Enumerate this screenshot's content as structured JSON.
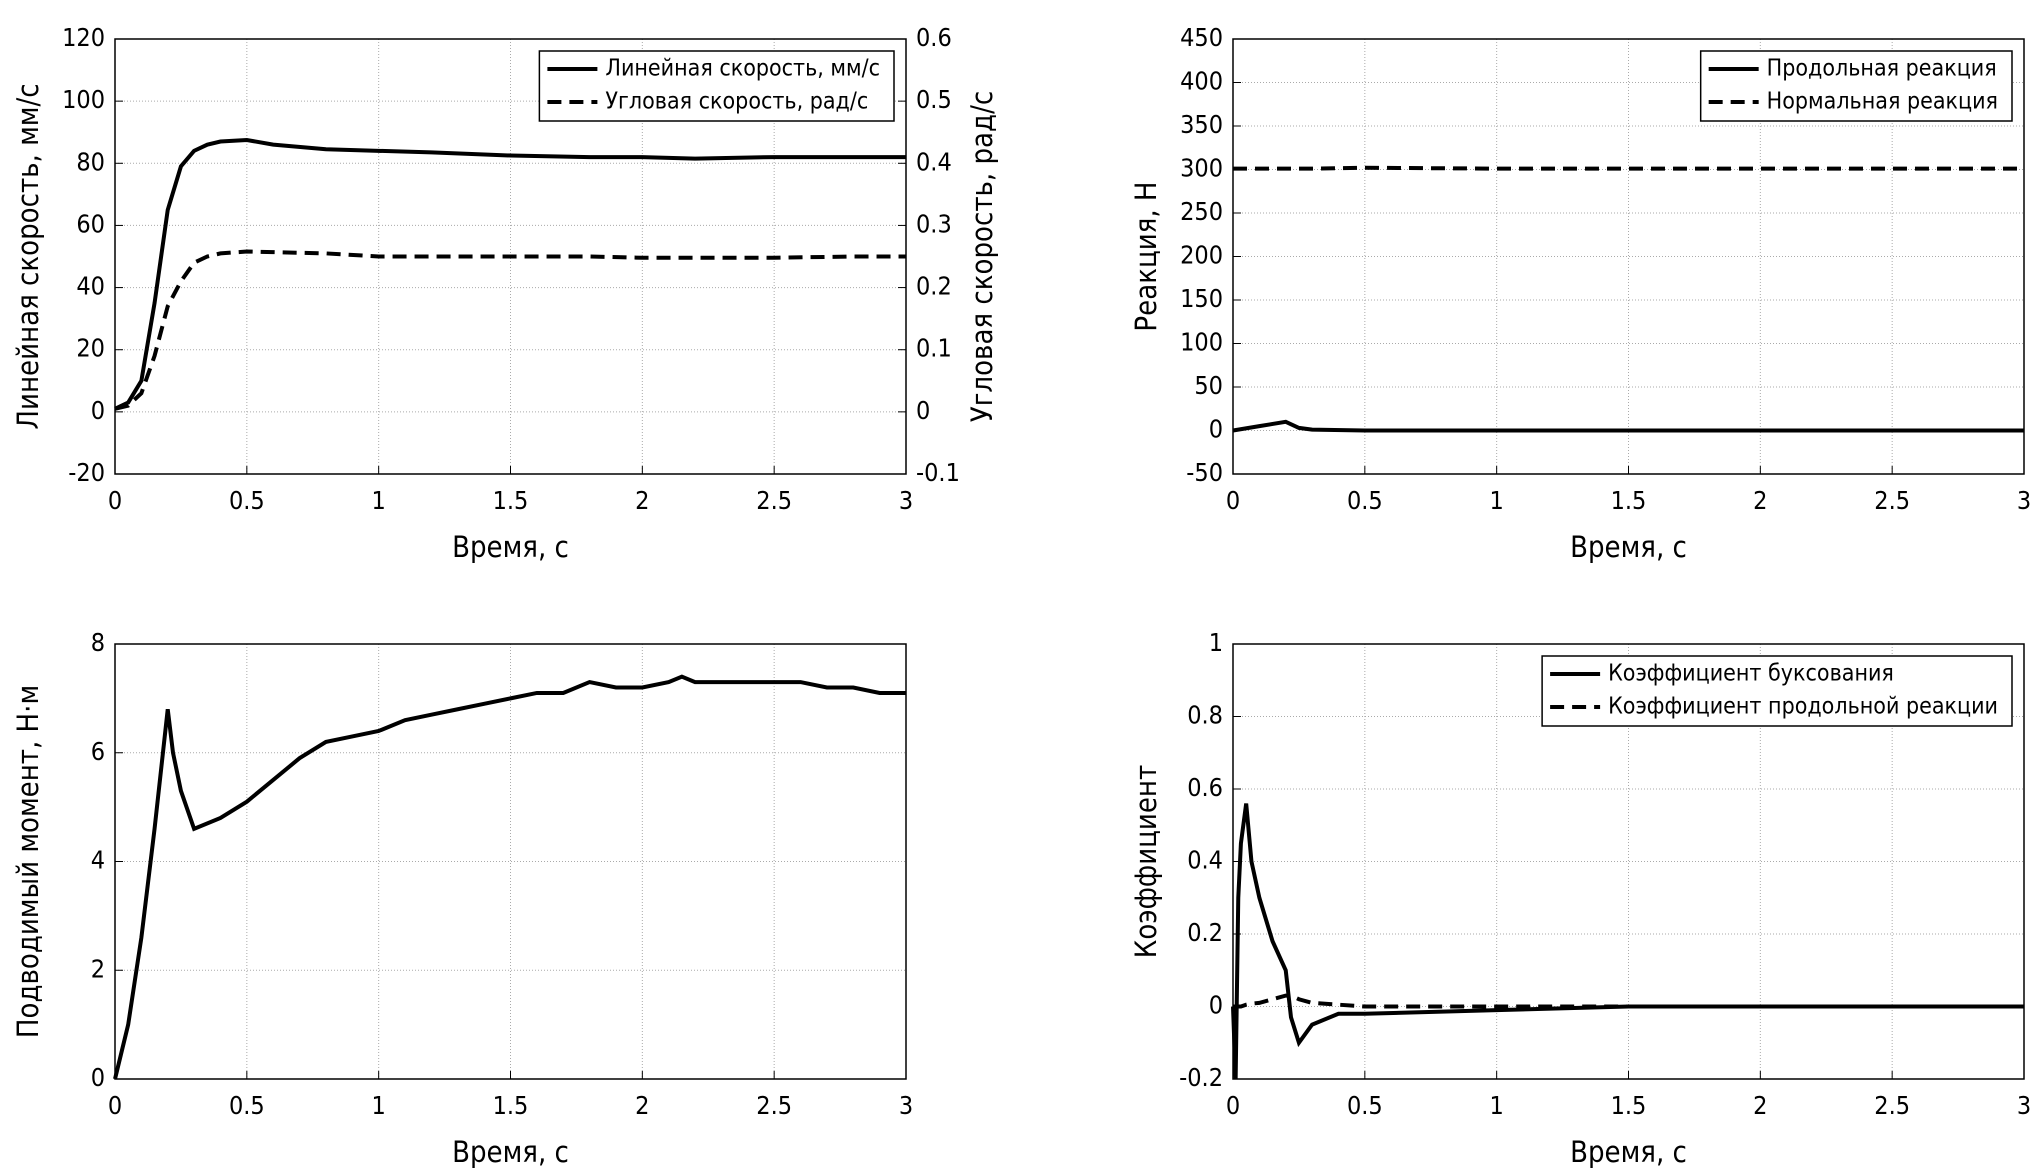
{
  "chart_data": [
    {
      "type": "line",
      "xlabel": "Время, с",
      "ylabel": "Линейная скорость, мм/с",
      "y2label": "Угловая скорость, рад/с",
      "x": [
        0,
        0.05,
        0.1,
        0.15,
        0.2,
        0.25,
        0.3,
        0.35,
        0.4,
        0.5,
        0.6,
        0.8,
        1,
        1.2,
        1.5,
        1.8,
        2,
        2.2,
        2.5,
        2.8,
        3
      ],
      "series": [
        {
          "name": "Линейная скорость, мм/с",
          "color": "#000000",
          "line_style": "solid",
          "values": [
            1,
            3,
            10,
            35,
            65,
            79,
            84,
            86,
            87,
            87.5,
            86,
            84.5,
            84,
            83.5,
            82.5,
            82,
            82,
            81.5,
            82,
            82,
            82
          ]
        },
        {
          "name": "Угловая скорость, рад/с",
          "color": "#000000",
          "line_style": "dashed",
          "axis": "y2",
          "values": [
            0.005,
            0.01,
            0.03,
            0.09,
            0.17,
            0.21,
            0.24,
            0.25,
            0.255,
            0.258,
            0.257,
            0.255,
            0.25,
            0.25,
            0.25,
            0.25,
            0.248,
            0.248,
            0.248,
            0.25,
            0.25
          ]
        }
      ],
      "xlim": [
        0,
        3
      ],
      "xticks": [
        0,
        0.5,
        1,
        1.5,
        2,
        2.5,
        3
      ],
      "ylim": [
        -20,
        120
      ],
      "yticks": [
        -20,
        0,
        20,
        40,
        60,
        80,
        100,
        120
      ],
      "y2lim": [
        -0.1,
        0.6
      ],
      "y2ticks": [
        -0.1,
        0,
        0.1,
        0.2,
        0.3,
        0.4,
        0.5,
        0.6
      ],
      "grid": true,
      "legend": "upper right"
    },
    {
      "type": "line",
      "xlabel": "Время, с",
      "ylabel": "Реакция, Н",
      "x": [
        0,
        0.1,
        0.2,
        0.25,
        0.3,
        0.5,
        1,
        1.5,
        2,
        2.5,
        3
      ],
      "series": [
        {
          "name": "Продольная реакция",
          "color": "#000000",
          "line_style": "solid",
          "values": [
            0,
            5,
            10,
            3,
            1,
            0,
            0,
            0,
            0,
            0,
            0
          ]
        },
        {
          "name": "Нормальная реакция",
          "color": "#000000",
          "line_style": "dashed",
          "values": [
            301,
            301,
            301,
            301,
            301,
            302,
            301,
            301,
            301,
            301,
            301
          ]
        }
      ],
      "xlim": [
        0,
        3
      ],
      "xticks": [
        0,
        0.5,
        1,
        1.5,
        2,
        2.5,
        3
      ],
      "ylim": [
        -50,
        450
      ],
      "yticks": [
        -50,
        0,
        50,
        100,
        150,
        200,
        250,
        300,
        350,
        400,
        450
      ],
      "grid": true,
      "legend": "upper right"
    },
    {
      "type": "line",
      "xlabel": "Время, с",
      "ylabel": "Подводимый момент, Н·м",
      "x": [
        0,
        0.05,
        0.1,
        0.15,
        0.2,
        0.22,
        0.25,
        0.3,
        0.4,
        0.5,
        0.6,
        0.7,
        0.8,
        0.9,
        1,
        1.1,
        1.2,
        1.3,
        1.4,
        1.5,
        1.6,
        1.7,
        1.8,
        1.9,
        2,
        2.1,
        2.15,
        2.2,
        2.3,
        2.4,
        2.5,
        2.6,
        2.7,
        2.8,
        2.9,
        3
      ],
      "series": [
        {
          "color": "#000000",
          "line_style": "solid",
          "values": [
            0,
            1,
            2.6,
            4.6,
            6.8,
            6,
            5.3,
            4.6,
            4.8,
            5.1,
            5.5,
            5.9,
            6.2,
            6.3,
            6.4,
            6.6,
            6.7,
            6.8,
            6.9,
            7,
            7.1,
            7.1,
            7.3,
            7.2,
            7.2,
            7.3,
            7.4,
            7.3,
            7.3,
            7.3,
            7.3,
            7.3,
            7.2,
            7.2,
            7.1,
            7.1
          ]
        }
      ],
      "xlim": [
        0,
        3
      ],
      "xticks": [
        0,
        0.5,
        1,
        1.5,
        2,
        2.5,
        3
      ],
      "ylim": [
        0,
        8
      ],
      "yticks": [
        0,
        2,
        4,
        6,
        8
      ],
      "grid": true
    },
    {
      "type": "line",
      "xlabel": "Время, с",
      "ylabel": "Коэффициент",
      "x": [
        0,
        0.01,
        0.02,
        0.03,
        0.05,
        0.07,
        0.1,
        0.15,
        0.2,
        0.22,
        0.25,
        0.3,
        0.4,
        0.5,
        1,
        1.5,
        2,
        2.5,
        3
      ],
      "series": [
        {
          "name": "Коэффициент буксования",
          "color": "#000000",
          "line_style": "solid",
          "values": [
            0,
            -0.2,
            0.3,
            0.45,
            0.56,
            0.4,
            0.3,
            0.18,
            0.1,
            -0.03,
            -0.1,
            -0.05,
            -0.02,
            -0.02,
            -0.01,
            0,
            0,
            0,
            0
          ]
        },
        {
          "name": "Коэффициент продольной реакции",
          "color": "#000000",
          "line_style": "dashed",
          "values": [
            0,
            0,
            0,
            0,
            0.005,
            0.008,
            0.01,
            0.02,
            0.03,
            0.03,
            0.02,
            0.01,
            0.005,
            0,
            0,
            0,
            0,
            0,
            0
          ]
        }
      ],
      "xlim": [
        0,
        3
      ],
      "xticks": [
        0,
        0.5,
        1,
        1.5,
        2,
        2.5,
        3
      ],
      "ylim": [
        -0.2,
        1
      ],
      "yticks": [
        -0.2,
        0,
        0.2,
        0.4,
        0.6,
        0.8,
        1
      ],
      "grid": true,
      "legend": "upper right"
    }
  ]
}
